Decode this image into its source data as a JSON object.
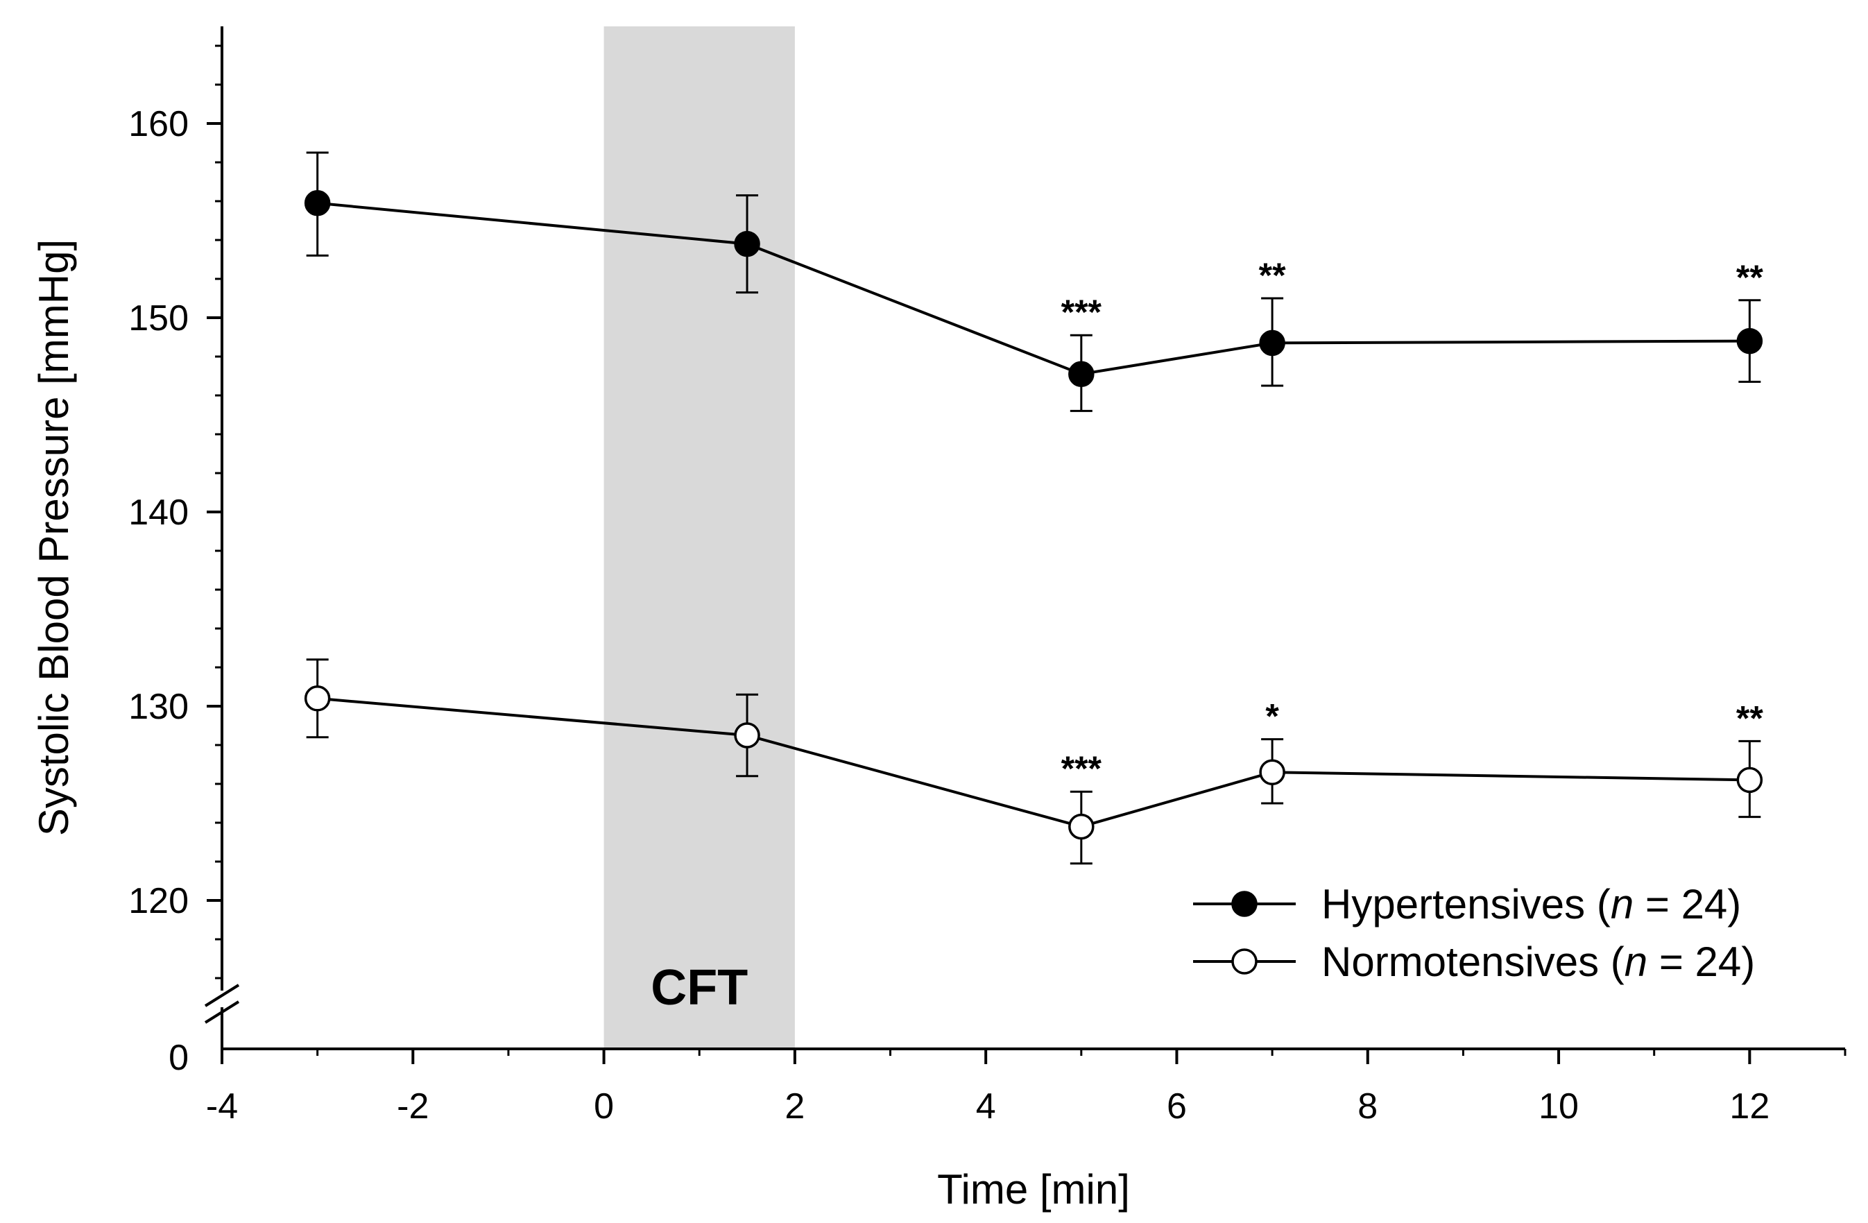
{
  "chart_data": {
    "type": "line",
    "title": "",
    "xlabel": "Time [min]",
    "ylabel": "Systolic Blood Pressure [mmHg]",
    "xlim": [
      -4,
      13
    ],
    "ylim": [
      115,
      165
    ],
    "y_axis_break_label": "0",
    "x_ticks": [
      -4,
      -2,
      0,
      2,
      4,
      6,
      8,
      10,
      12
    ],
    "x_tick_labels": [
      "-4",
      "-2",
      "0",
      "2",
      "4",
      "6",
      "8",
      "10",
      "12"
    ],
    "y_ticks": [
      120,
      130,
      140,
      150,
      160
    ],
    "y_tick_labels": [
      "120",
      "130",
      "140",
      "150",
      "160"
    ],
    "shaded_region": {
      "x_start": 0,
      "x_end": 2,
      "label": "CFT",
      "color": "#d9d9d9"
    },
    "series": [
      {
        "name": "Hypertensives",
        "legend_prefix": "Hypertensives (",
        "legend_n": "n",
        "legend_suffix": " = 24)",
        "marker": "filled",
        "x": [
          -3,
          1.5,
          5,
          7,
          12
        ],
        "values": [
          155.9,
          153.8,
          147.1,
          148.7,
          148.8
        ],
        "error_upper": [
          158.5,
          156.3,
          149.1,
          151.0,
          150.9
        ],
        "error_lower": [
          153.2,
          151.3,
          145.2,
          146.5,
          146.7
        ],
        "significance": [
          "",
          "",
          "***",
          "**",
          "**"
        ]
      },
      {
        "name": "Normotensives",
        "legend_prefix": "Normotensives (",
        "legend_n": "n",
        "legend_suffix": " = 24)",
        "marker": "open",
        "x": [
          -3,
          1.5,
          5,
          7,
          12
        ],
        "values": [
          130.4,
          128.5,
          123.8,
          126.6,
          126.2
        ],
        "error_upper": [
          132.4,
          130.6,
          125.6,
          128.3,
          128.2
        ],
        "error_lower": [
          128.4,
          126.4,
          121.9,
          125.0,
          124.3
        ],
        "significance": [
          "",
          "",
          "***",
          "*",
          "**"
        ]
      }
    ],
    "legend_position": "bottom-right",
    "line_color": "#000000",
    "background_color": "#ffffff"
  }
}
